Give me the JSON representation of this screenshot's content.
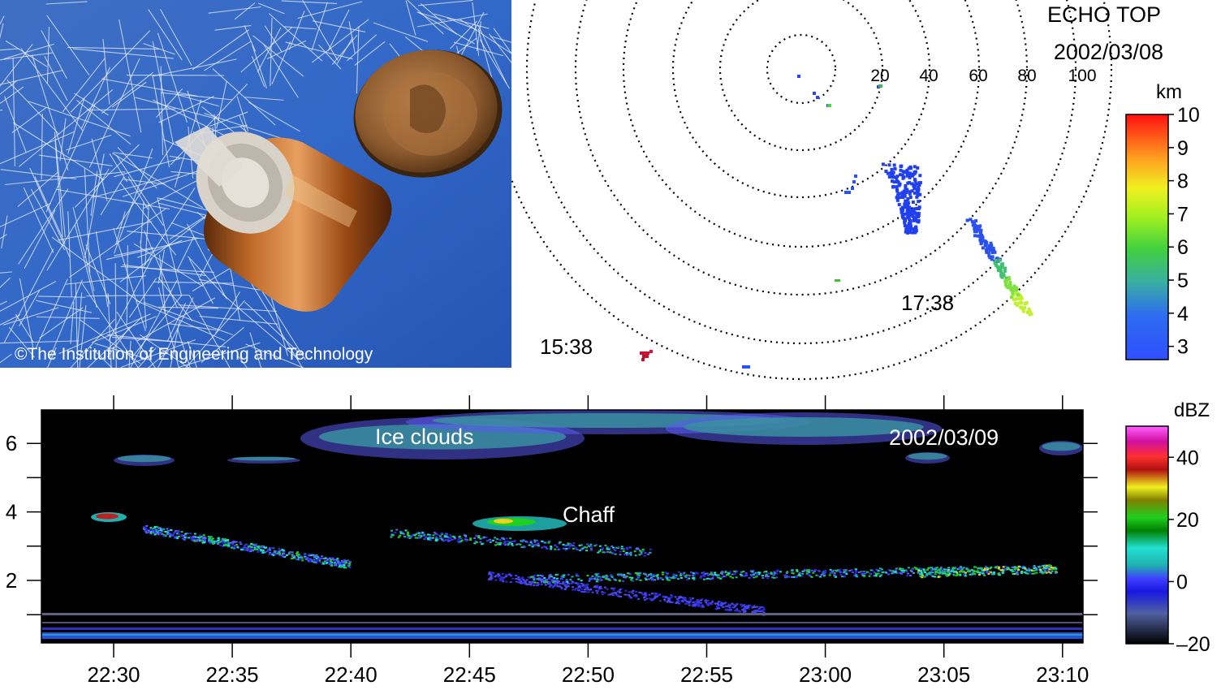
{
  "photo": {
    "credit": "©The Institution of Engineering and Technology"
  },
  "echo_top": {
    "title": "ECHO TOP",
    "date": "2002/03/08",
    "range_ring_labels": [
      "20",
      "40",
      "60",
      "80",
      "100"
    ],
    "times": [
      "15:38",
      "17:38"
    ],
    "colorbar": {
      "unit": "km",
      "ticks": [
        "10",
        "9",
        "8",
        "7",
        "6",
        "5",
        "4",
        "3"
      ],
      "min": 2.6,
      "max": 10
    }
  },
  "time_height": {
    "date": "2002/03/09",
    "annotations": [
      "Ice clouds",
      "Chaff"
    ],
    "x_ticks": [
      "22:30",
      "22:35",
      "22:40",
      "22:45",
      "22:50",
      "22:55",
      "23:00",
      "23:05",
      "23:10"
    ],
    "y_ticks": [
      "6",
      "4",
      "2"
    ],
    "colorbar": {
      "unit": "dBZ",
      "ticks": [
        "40",
        "20",
        "0",
        "–20"
      ],
      "min": -20,
      "max": 50
    }
  },
  "chart_data": [
    {
      "type": "scatter",
      "title": "ECHO TOP",
      "subtitle": "2002/03/08",
      "xlabel": "",
      "ylabel": "",
      "range_rings_km": [
        20,
        40,
        60,
        80,
        100
      ],
      "series": [
        {
          "label": "15:38",
          "echo_top_km": 9.6
        },
        {
          "label": "17:38",
          "echo_top_km": [
            3.5,
            6.5
          ]
        }
      ],
      "colorbar": {
        "label": "km",
        "range": [
          2.6,
          10
        ]
      }
    },
    {
      "type": "heatmap",
      "subtitle": "2002/03/09",
      "x": [
        "22:30",
        "22:35",
        "22:40",
        "22:45",
        "22:50",
        "22:55",
        "23:00",
        "23:05",
        "23:10"
      ],
      "y_ticks": [
        2,
        4,
        6
      ],
      "ylim": [
        0,
        7
      ],
      "annotations": [
        {
          "text": "Ice clouds",
          "height_km": 6
        },
        {
          "text": "Chaff",
          "height_km": 3.8
        }
      ],
      "colorbar": {
        "label": "dBZ",
        "range": [
          -20,
          50
        ]
      }
    }
  ]
}
